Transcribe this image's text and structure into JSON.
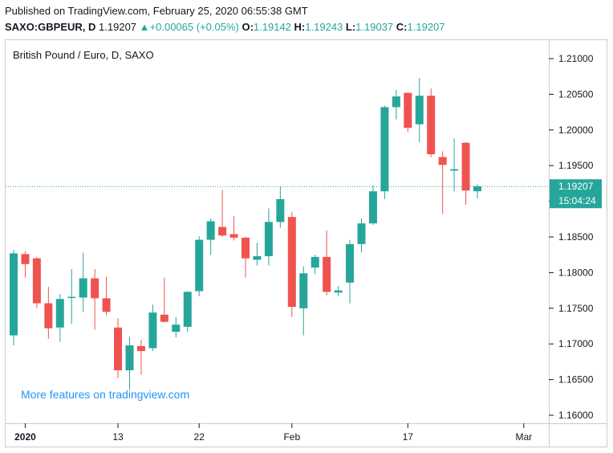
{
  "header": {
    "published": "Published on TradingView.com, February 25, 2020 06:55:38 GMT",
    "symbol": "SAXO:GBPEUR, D",
    "last": "1.19207",
    "change_arrow": "▲",
    "change": "+0.00065 (+0.05%)",
    "o_label": "O:",
    "o_value": "1.19142",
    "h_label": "H:",
    "h_value": "1.19243",
    "l_label": "L:",
    "l_value": "1.19037",
    "c_label": "C:",
    "c_value": "1.19207"
  },
  "chart_data": {
    "type": "candlestick",
    "title": "British Pound / Euro, D, SAXO",
    "watermark": "More features on tradingview.com",
    "colors": {
      "up": "#26a69a",
      "down": "#ef5350",
      "price_line": "#26a69a",
      "text": "#131722",
      "watermark": "#2196f3"
    },
    "ylim": [
      1.1575,
      1.2125
    ],
    "y_ticks": [
      "1.21000",
      "1.20500",
      "1.20000",
      "1.19500",
      "1.19000",
      "1.18500",
      "1.18000",
      "1.17500",
      "1.17000",
      "1.16500",
      "1.16000"
    ],
    "x_labels": [
      {
        "label": "2020",
        "index": 1,
        "bold": true
      },
      {
        "label": "13",
        "index": 9
      },
      {
        "label": "22",
        "index": 16
      },
      {
        "label": "Feb",
        "index": 24
      },
      {
        "label": "17",
        "index": 34
      },
      {
        "label": "Mar",
        "index": 44
      }
    ],
    "last_price": "1.19207",
    "countdown": "15:04:24",
    "candles": [
      {
        "o": 1.1712,
        "h": 1.1832,
        "l": 1.1698,
        "c": 1.1827
      },
      {
        "o": 1.1826,
        "h": 1.183,
        "l": 1.1793,
        "c": 1.1812
      },
      {
        "o": 1.182,
        "h": 1.1822,
        "l": 1.175,
        "c": 1.1757
      },
      {
        "o": 1.1757,
        "h": 1.178,
        "l": 1.1707,
        "c": 1.1722
      },
      {
        "o": 1.1723,
        "h": 1.177,
        "l": 1.1703,
        "c": 1.1763
      },
      {
        "o": 1.1765,
        "h": 1.1805,
        "l": 1.1728,
        "c": 1.1766
      },
      {
        "o": 1.1765,
        "h": 1.1828,
        "l": 1.1745,
        "c": 1.1792
      },
      {
        "o": 1.1792,
        "h": 1.1805,
        "l": 1.172,
        "c": 1.1764
      },
      {
        "o": 1.1764,
        "h": 1.1794,
        "l": 1.174,
        "c": 1.1745
      },
      {
        "o": 1.1723,
        "h": 1.1736,
        "l": 1.1652,
        "c": 1.1663
      },
      {
        "o": 1.1663,
        "h": 1.171,
        "l": 1.1636,
        "c": 1.1698
      },
      {
        "o": 1.1697,
        "h": 1.1706,
        "l": 1.1657,
        "c": 1.169
      },
      {
        "o": 1.1694,
        "h": 1.1755,
        "l": 1.169,
        "c": 1.1744
      },
      {
        "o": 1.1741,
        "h": 1.1793,
        "l": 1.173,
        "c": 1.1731
      },
      {
        "o": 1.1717,
        "h": 1.1738,
        "l": 1.1709,
        "c": 1.1727
      },
      {
        "o": 1.1724,
        "h": 1.1774,
        "l": 1.1717,
        "c": 1.1773
      },
      {
        "o": 1.1774,
        "h": 1.1851,
        "l": 1.1767,
        "c": 1.1846
      },
      {
        "o": 1.1846,
        "h": 1.1876,
        "l": 1.1825,
        "c": 1.1872
      },
      {
        "o": 1.1864,
        "h": 1.1916,
        "l": 1.185,
        "c": 1.1852
      },
      {
        "o": 1.1854,
        "h": 1.1879,
        "l": 1.1845,
        "c": 1.1849
      },
      {
        "o": 1.1849,
        "h": 1.185,
        "l": 1.1793,
        "c": 1.182
      },
      {
        "o": 1.1818,
        "h": 1.1842,
        "l": 1.181,
        "c": 1.1823
      },
      {
        "o": 1.1823,
        "h": 1.189,
        "l": 1.181,
        "c": 1.1871
      },
      {
        "o": 1.1871,
        "h": 1.1921,
        "l": 1.1863,
        "c": 1.1903
      },
      {
        "o": 1.1878,
        "h": 1.1885,
        "l": 1.1738,
        "c": 1.1752
      },
      {
        "o": 1.175,
        "h": 1.1809,
        "l": 1.1712,
        "c": 1.1799
      },
      {
        "o": 1.1807,
        "h": 1.1825,
        "l": 1.1798,
        "c": 1.1822
      },
      {
        "o": 1.1822,
        "h": 1.1859,
        "l": 1.1768,
        "c": 1.1773
      },
      {
        "o": 1.1772,
        "h": 1.1781,
        "l": 1.1767,
        "c": 1.1775
      },
      {
        "o": 1.1786,
        "h": 1.1846,
        "l": 1.1757,
        "c": 1.184
      },
      {
        "o": 1.184,
        "h": 1.1876,
        "l": 1.1828,
        "c": 1.1869
      },
      {
        "o": 1.1869,
        "h": 1.1922,
        "l": 1.1867,
        "c": 1.1914
      },
      {
        "o": 1.1914,
        "h": 1.2034,
        "l": 1.1903,
        "c": 1.2032
      },
      {
        "o": 1.2032,
        "h": 1.2056,
        "l": 1.2015,
        "c": 1.2047
      },
      {
        "o": 1.2052,
        "h": 1.2052,
        "l": 1.1997,
        "c": 1.2003
      },
      {
        "o": 1.2008,
        "h": 1.2073,
        "l": 1.1983,
        "c": 1.2048
      },
      {
        "o": 1.2048,
        "h": 1.2058,
        "l": 1.1962,
        "c": 1.1966
      },
      {
        "o": 1.1962,
        "h": 1.197,
        "l": 1.1882,
        "c": 1.1951
      },
      {
        "o": 1.1943,
        "h": 1.1988,
        "l": 1.1914,
        "c": 1.1945
      },
      {
        "o": 1.1982,
        "h": 1.1983,
        "l": 1.1895,
        "c": 1.1915
      },
      {
        "o": 1.1914,
        "h": 1.1924,
        "l": 1.1904,
        "c": 1.1921
      }
    ]
  }
}
